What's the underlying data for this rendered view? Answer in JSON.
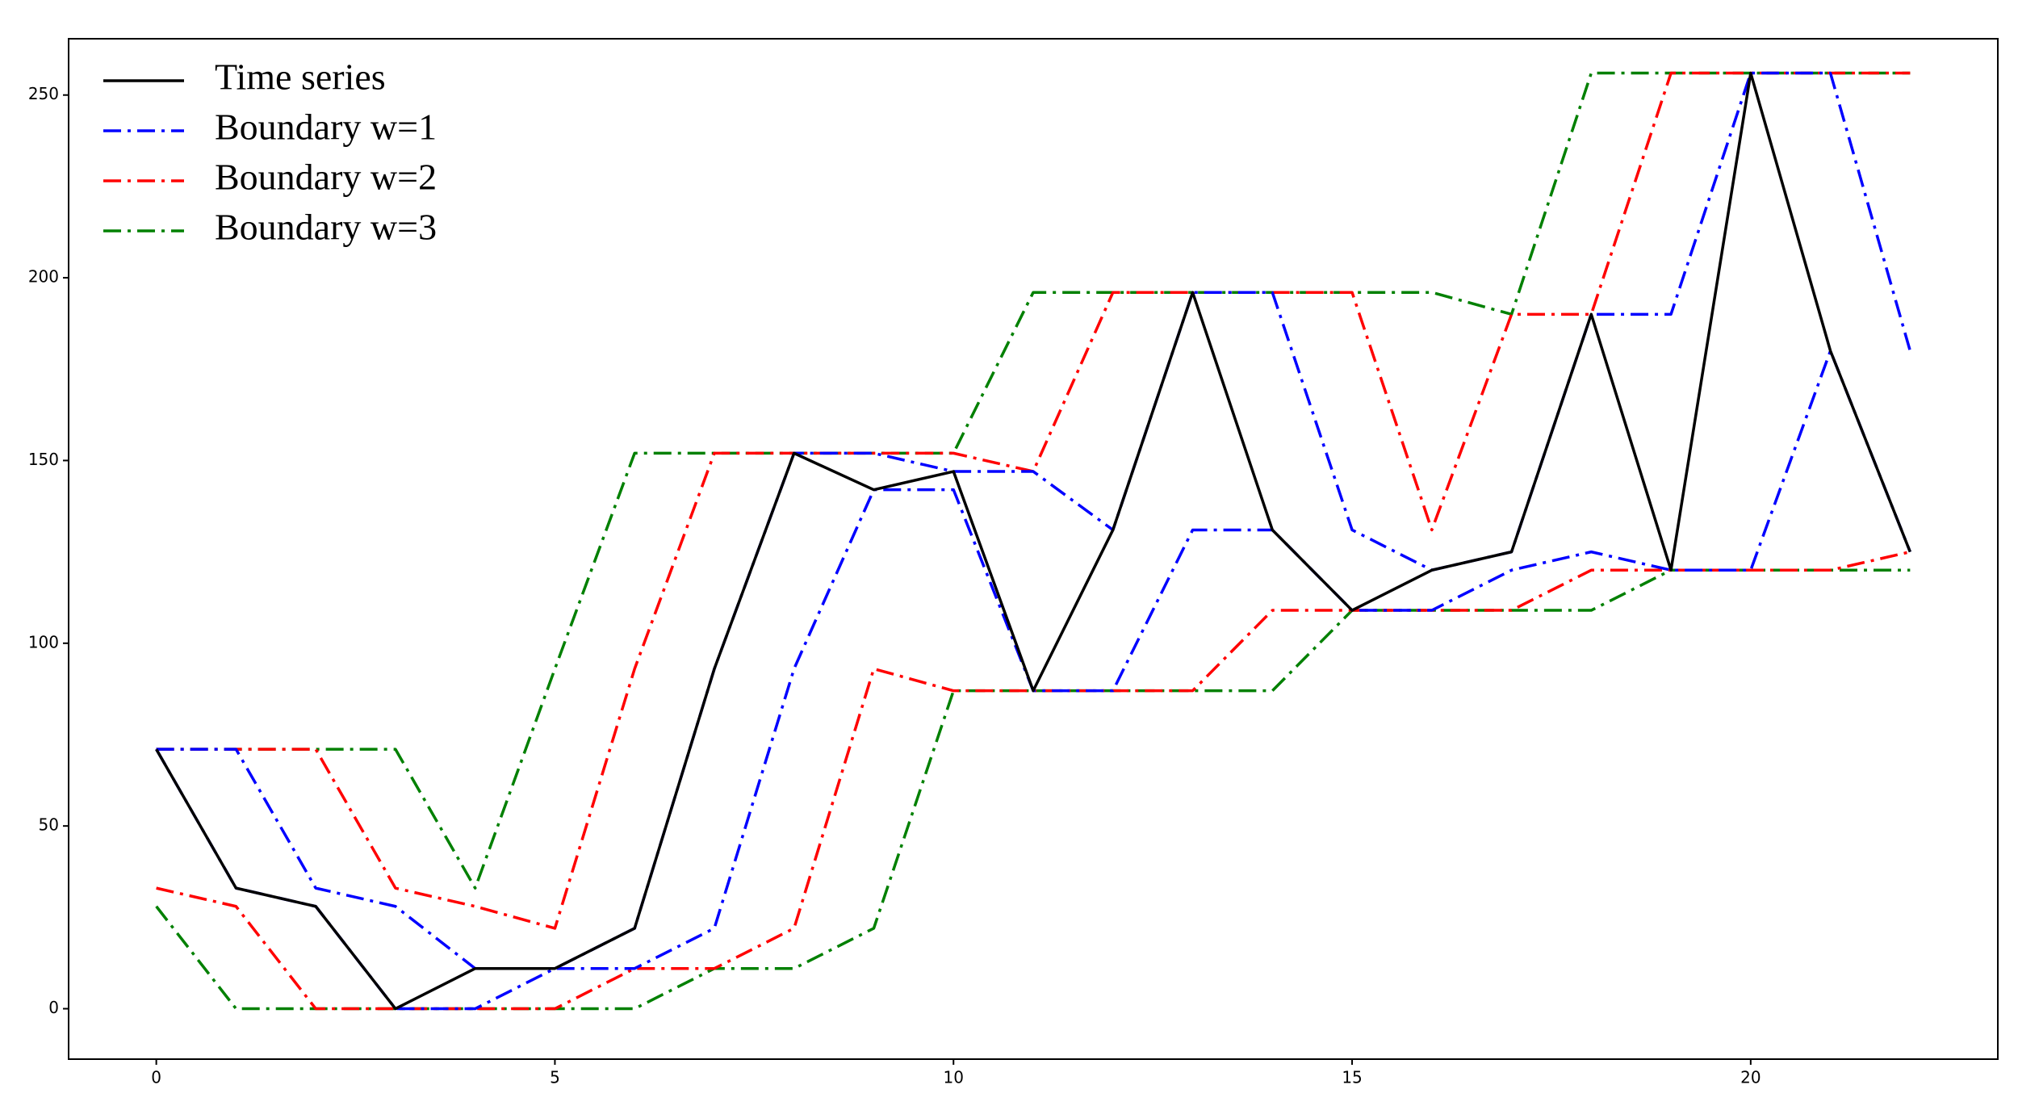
{
  "chart_data": {
    "type": "line",
    "x": [
      0,
      1,
      2,
      3,
      4,
      5,
      6,
      7,
      8,
      9,
      10,
      11,
      12,
      13,
      14,
      15,
      16,
      17,
      18,
      19,
      20,
      21,
      22
    ],
    "series": [
      {
        "name": "Time series",
        "color": "#000000",
        "dash": "solid",
        "values": [
          71,
          33,
          28,
          0,
          11,
          11,
          22,
          93,
          152,
          142,
          147,
          87,
          131,
          196,
          131,
          109,
          120,
          125,
          190,
          120,
          256,
          180,
          125
        ]
      },
      {
        "name": "Boundary w=1",
        "color": "#0000ff",
        "dash": "dashdot",
        "upper": [
          71,
          71,
          33,
          28,
          11,
          11,
          22,
          93,
          152,
          152,
          147,
          147,
          131,
          196,
          196,
          131,
          120,
          125,
          190,
          190,
          256,
          256,
          180
        ],
        "lower": [
          71,
          33,
          28,
          0,
          0,
          11,
          11,
          22,
          93,
          142,
          142,
          87,
          87,
          131,
          131,
          109,
          109,
          120,
          125,
          120,
          120,
          180,
          125
        ]
      },
      {
        "name": "Boundary w=2",
        "color": "#ff0000",
        "dash": "dashdot",
        "upper": [
          71,
          71,
          71,
          33,
          28,
          22,
          93,
          152,
          152,
          152,
          152,
          147,
          196,
          196,
          196,
          196,
          131,
          190,
          190,
          256,
          256,
          256,
          256
        ],
        "lower": [
          33,
          28,
          0,
          0,
          0,
          0,
          11,
          11,
          22,
          93,
          87,
          87,
          87,
          87,
          109,
          109,
          109,
          109,
          120,
          120,
          120,
          120,
          125
        ]
      },
      {
        "name": "Boundary w=3",
        "color": "#008000",
        "dash": "dashdot",
        "upper": [
          71,
          71,
          71,
          71,
          33,
          93,
          152,
          152,
          152,
          152,
          152,
          196,
          196,
          196,
          196,
          196,
          196,
          190,
          256,
          256,
          256,
          256,
          256
        ],
        "lower": [
          28,
          0,
          0,
          0,
          0,
          0,
          0,
          11,
          11,
          22,
          87,
          87,
          87,
          87,
          87,
          109,
          109,
          109,
          109,
          120,
          120,
          120,
          120
        ]
      }
    ],
    "xlim": [
      -1.1,
      23.1
    ],
    "ylim": [
      -13.8,
      265.4
    ],
    "xticks": [
      0,
      5,
      10,
      15,
      20
    ],
    "yticks": [
      0,
      50,
      100,
      150,
      200,
      250
    ],
    "legend": "upper-left"
  }
}
